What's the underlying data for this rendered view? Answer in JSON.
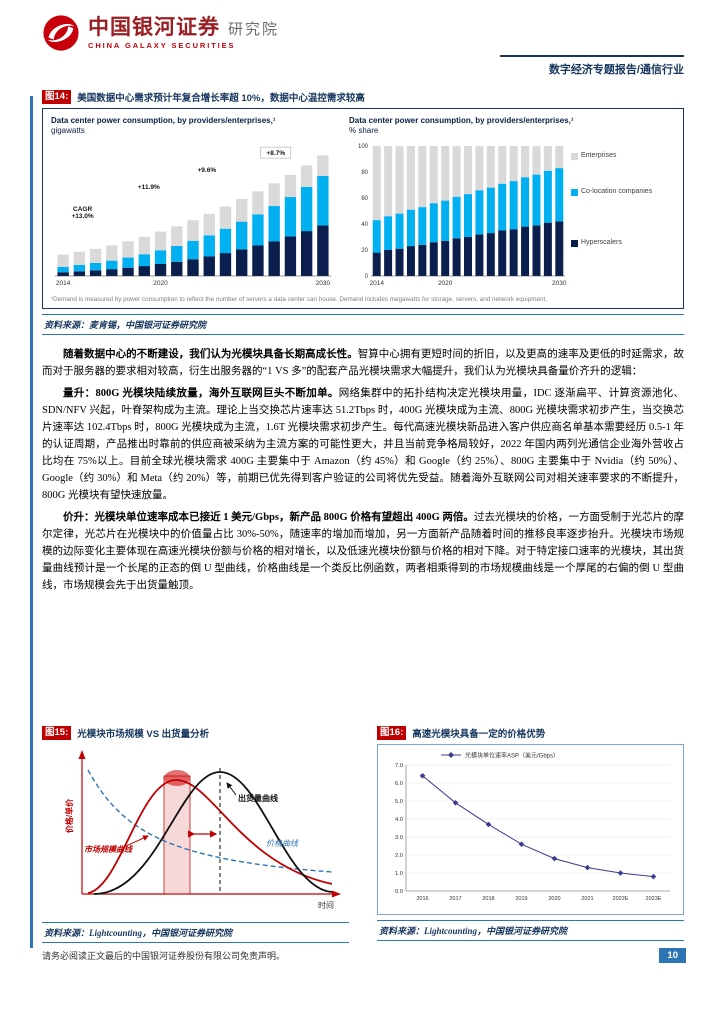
{
  "header": {
    "brand_cn": "中国银河证券",
    "brand_org": "研究院",
    "brand_en": "CHINA GALAXY SECURITIES",
    "report_tag": "数字经济专题报告/通信行业"
  },
  "fig14": {
    "label": "图14:",
    "title": "美国数据中心需求预计年复合增长率超 10%，数据中心温控需求较高",
    "footnote": "¹Demand is measured by power consumption to reflect the number of servers a data center can house. Demand includes megawatts for storage, servers, and network equipment.",
    "source": "资料来源：麦肯锡，中国银河证券研究院"
  },
  "body": {
    "paragraphs": [
      {
        "bold": "随着数据中心的不断建设，我们认为光模块具备长期高成长性。",
        "text": "智算中心拥有更短时间的折旧，以及更高的速率及更低的时延需求，故而对于服务器的要求相对较高，衍生出服务器的“1 VS 多”的配套产品光模块需求大幅提升，我们认为光模块具备量价齐升的逻辑："
      },
      {
        "bold": "量升：800G 光模块陆续放量，海外互联网巨头不断加单。",
        "text": "网络集群中的拓扑结构决定光模块用量，IDC 逐渐扁平、计算资源池化、SDN/NFV 兴起，叶脊架构成为主流。理论上当交换芯片速率达 51.2Tbps 时，400G 光模块成为主流、800G 光模块需求初步产生，当交换芯片速率达 102.4Tbps 时，800G 光模块成为主流，1.6T 光模块需求初步产生。每代高速光模块新品进入客户供应商名单基本需要经历 0.5-1 年的认证周期，产品推出时靠前的供应商被采纳为主流方案的可能性更大，并且当前竞争格局较好，2022 年国内两列光通信企业海外营收占比均在 75%以上。目前全球光模块需求 400G 主要集中于 Amazon（约 45%）和 Google（约 25%）、800G 主要集中于 Nvidia（约 50%）、Google（约 30%）和 Meta（约 20%）等，前期已优先得到客户验证的公司将优先受益。随着海外互联网公司对相关速率要求的不断提升，800G 光模块有望快速放量。"
      },
      {
        "bold": "价升：光模块单位速率成本已接近 1 美元/Gbps，新产品 800G 价格有望超出 400G 两倍。",
        "text": "过去光模块的价格，一方面受制于光芯片的摩尔定律，光芯片在光模块中的价值量占比 30%-50%，随速率的增加而增加，另一方面新产品随着时间的推移良率逐步抬升。光模块市场规模的边际变化主要体现在高速光模块份额与价格的相对增长，以及低速光模块份额与价格的相对下降。对于特定接口速率的光模块，其出货量曲线预计是一个长尾的正态的倒 U 型曲线，价格曲线是一个类反比例函数，两者相乘得到的市场规模曲线是一个厚尾的右偏的倒 U 型曲线，市场规模会先于出货量触顶。"
      }
    ]
  },
  "fig15": {
    "label": "图15:",
    "title": "光模块市场规模 VS 出货量分析",
    "y_axis_label": "价格/单价",
    "x_axis_label": "时间",
    "labels": {
      "market_curve": "市场规模曲线",
      "shipment_curve": "出货量曲线",
      "price_curve": "价格曲线"
    },
    "source": "资料来源：Lightcounting，中国银河证券研究院"
  },
  "fig16": {
    "label": "图16:",
    "title": "高速光模块具备一定的价格优势",
    "source": "资料来源：Lightcounting，中国银河证券研究院"
  },
  "footer": {
    "disclaimer": "请务必阅读正文最后的中国银河证券股份有限公司免责声明。",
    "page": "10"
  },
  "chart_data": [
    {
      "id": "chart-gw",
      "type": "bar",
      "stacked": true,
      "title": "Data center power consumption, by providers/enterprises,¹",
      "unit": "gigawatts",
      "x": [
        "2014",
        "2015",
        "2016",
        "2017",
        "2018",
        "2019",
        "2020",
        "2021",
        "2022",
        "2023",
        "2024",
        "2025",
        "2026",
        "2027",
        "2028",
        "2029",
        "2030"
      ],
      "x_ticks": [
        "2014",
        "2020",
        "2030"
      ],
      "ymax": 55,
      "series": [
        {
          "name": "Hyperscalers",
          "color": "#0b1f4e",
          "values": [
            1.6,
            2.0,
            2.4,
            2.9,
            3.5,
            4.2,
            5.1,
            6.0,
            7.1,
            8.3,
            9.7,
            11.3,
            12.9,
            14.7,
            16.7,
            19.0,
            21.4
          ]
        },
        {
          "name": "Co-location companies",
          "color": "#00b0f0",
          "values": [
            2.3,
            2.7,
            3.1,
            3.6,
            4.3,
            5.0,
            5.8,
            6.7,
            7.8,
            8.9,
            10.3,
            11.7,
            13.2,
            14.9,
            16.7,
            18.7,
            20.9
          ]
        },
        {
          "name": "Enterprises",
          "color": "#d9d9d9",
          "values": [
            5.1,
            5.6,
            6.0,
            6.4,
            6.9,
            7.4,
            7.9,
            8.3,
            8.7,
            9.1,
            9.4,
            9.6,
            9.7,
            9.6,
            9.4,
            9.1,
            8.7
          ]
        }
      ],
      "annotations": [
        {
          "text": "CAGR\n+13.0%",
          "xf": 0.1,
          "yf": 0.5
        },
        {
          "text": "+11.9%",
          "xf": 0.34,
          "yf": 0.33
        },
        {
          "text": "+9.6%",
          "xf": 0.55,
          "yf": 0.2
        },
        {
          "text": "+8.7%",
          "xf": 0.8,
          "yf": 0.07,
          "box": true
        }
      ]
    },
    {
      "id": "chart-share",
      "type": "bar",
      "stacked": true,
      "title": "Data center power consumption, by providers/enterprises,¹",
      "unit": "% share",
      "x": [
        "2014",
        "2015",
        "2016",
        "2017",
        "2018",
        "2019",
        "2020",
        "2021",
        "2022",
        "2023",
        "2024",
        "2025",
        "2026",
        "2027",
        "2028",
        "2029",
        "2030"
      ],
      "x_ticks": [
        "2014",
        "2020",
        "2030"
      ],
      "ymax": 100,
      "y_ticks": [
        0,
        20,
        40,
        60,
        80,
        100
      ],
      "series": [
        {
          "name": "Hyperscalers",
          "color": "#0b1f4e",
          "values": [
            18,
            20,
            21,
            23,
            24,
            26,
            27,
            29,
            30,
            32,
            33,
            35,
            36,
            38,
            39,
            41,
            42
          ]
        },
        {
          "name": "Co-location companies",
          "color": "#00b0f0",
          "values": [
            25,
            26,
            27,
            28,
            29,
            30,
            31,
            32,
            33,
            34,
            35,
            36,
            37,
            38,
            39,
            40,
            41
          ]
        },
        {
          "name": "Enterprises",
          "color": "#d9d9d9",
          "values": [
            57,
            54,
            52,
            49,
            47,
            44,
            42,
            39,
            37,
            34,
            32,
            29,
            27,
            24,
            22,
            19,
            17
          ]
        }
      ],
      "legend": [
        "Enterprises",
        "Co-location companies",
        "Hyperscalers"
      ]
    },
    {
      "id": "chart-asp",
      "type": "line",
      "legend": "光模块单位速率ASP（美元/Gbps）",
      "x": [
        "2016",
        "2017",
        "2018",
        "2019",
        "2020",
        "2021",
        "2022E",
        "2023E"
      ],
      "values": [
        6.4,
        4.9,
        3.7,
        2.6,
        1.8,
        1.3,
        1.0,
        0.8
      ],
      "ylim": [
        0,
        7
      ],
      "ystep": 1,
      "color": "#3b3b8f"
    }
  ]
}
